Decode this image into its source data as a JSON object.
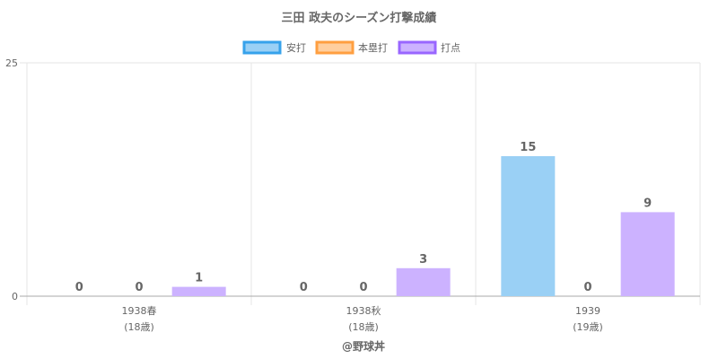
{
  "chart_data": {
    "type": "bar",
    "title": "三田 政夫のシーズン打撃成績",
    "categories": [
      {
        "line1": "1938春",
        "line2": "(18歳)"
      },
      {
        "line1": "1938秋",
        "line2": "(18歳)"
      },
      {
        "line1": "1939",
        "line2": "(19歳)"
      }
    ],
    "series": [
      {
        "name": "安打",
        "values": [
          0,
          0,
          15
        ],
        "color": "#9ad0f5",
        "border": "#36a2eb"
      },
      {
        "name": "本塁打",
        "values": [
          0,
          0,
          0
        ],
        "color": "#ffcf9f",
        "border": "#ff9f40"
      },
      {
        "name": "打点",
        "values": [
          1,
          3,
          9
        ],
        "color": "#ccb2ff",
        "border": "#9966ff"
      }
    ],
    "ylim": [
      0,
      25
    ],
    "yticks": [
      "0",
      "25"
    ],
    "legend_position": "top",
    "grid": true
  },
  "credit": "@野球丼"
}
